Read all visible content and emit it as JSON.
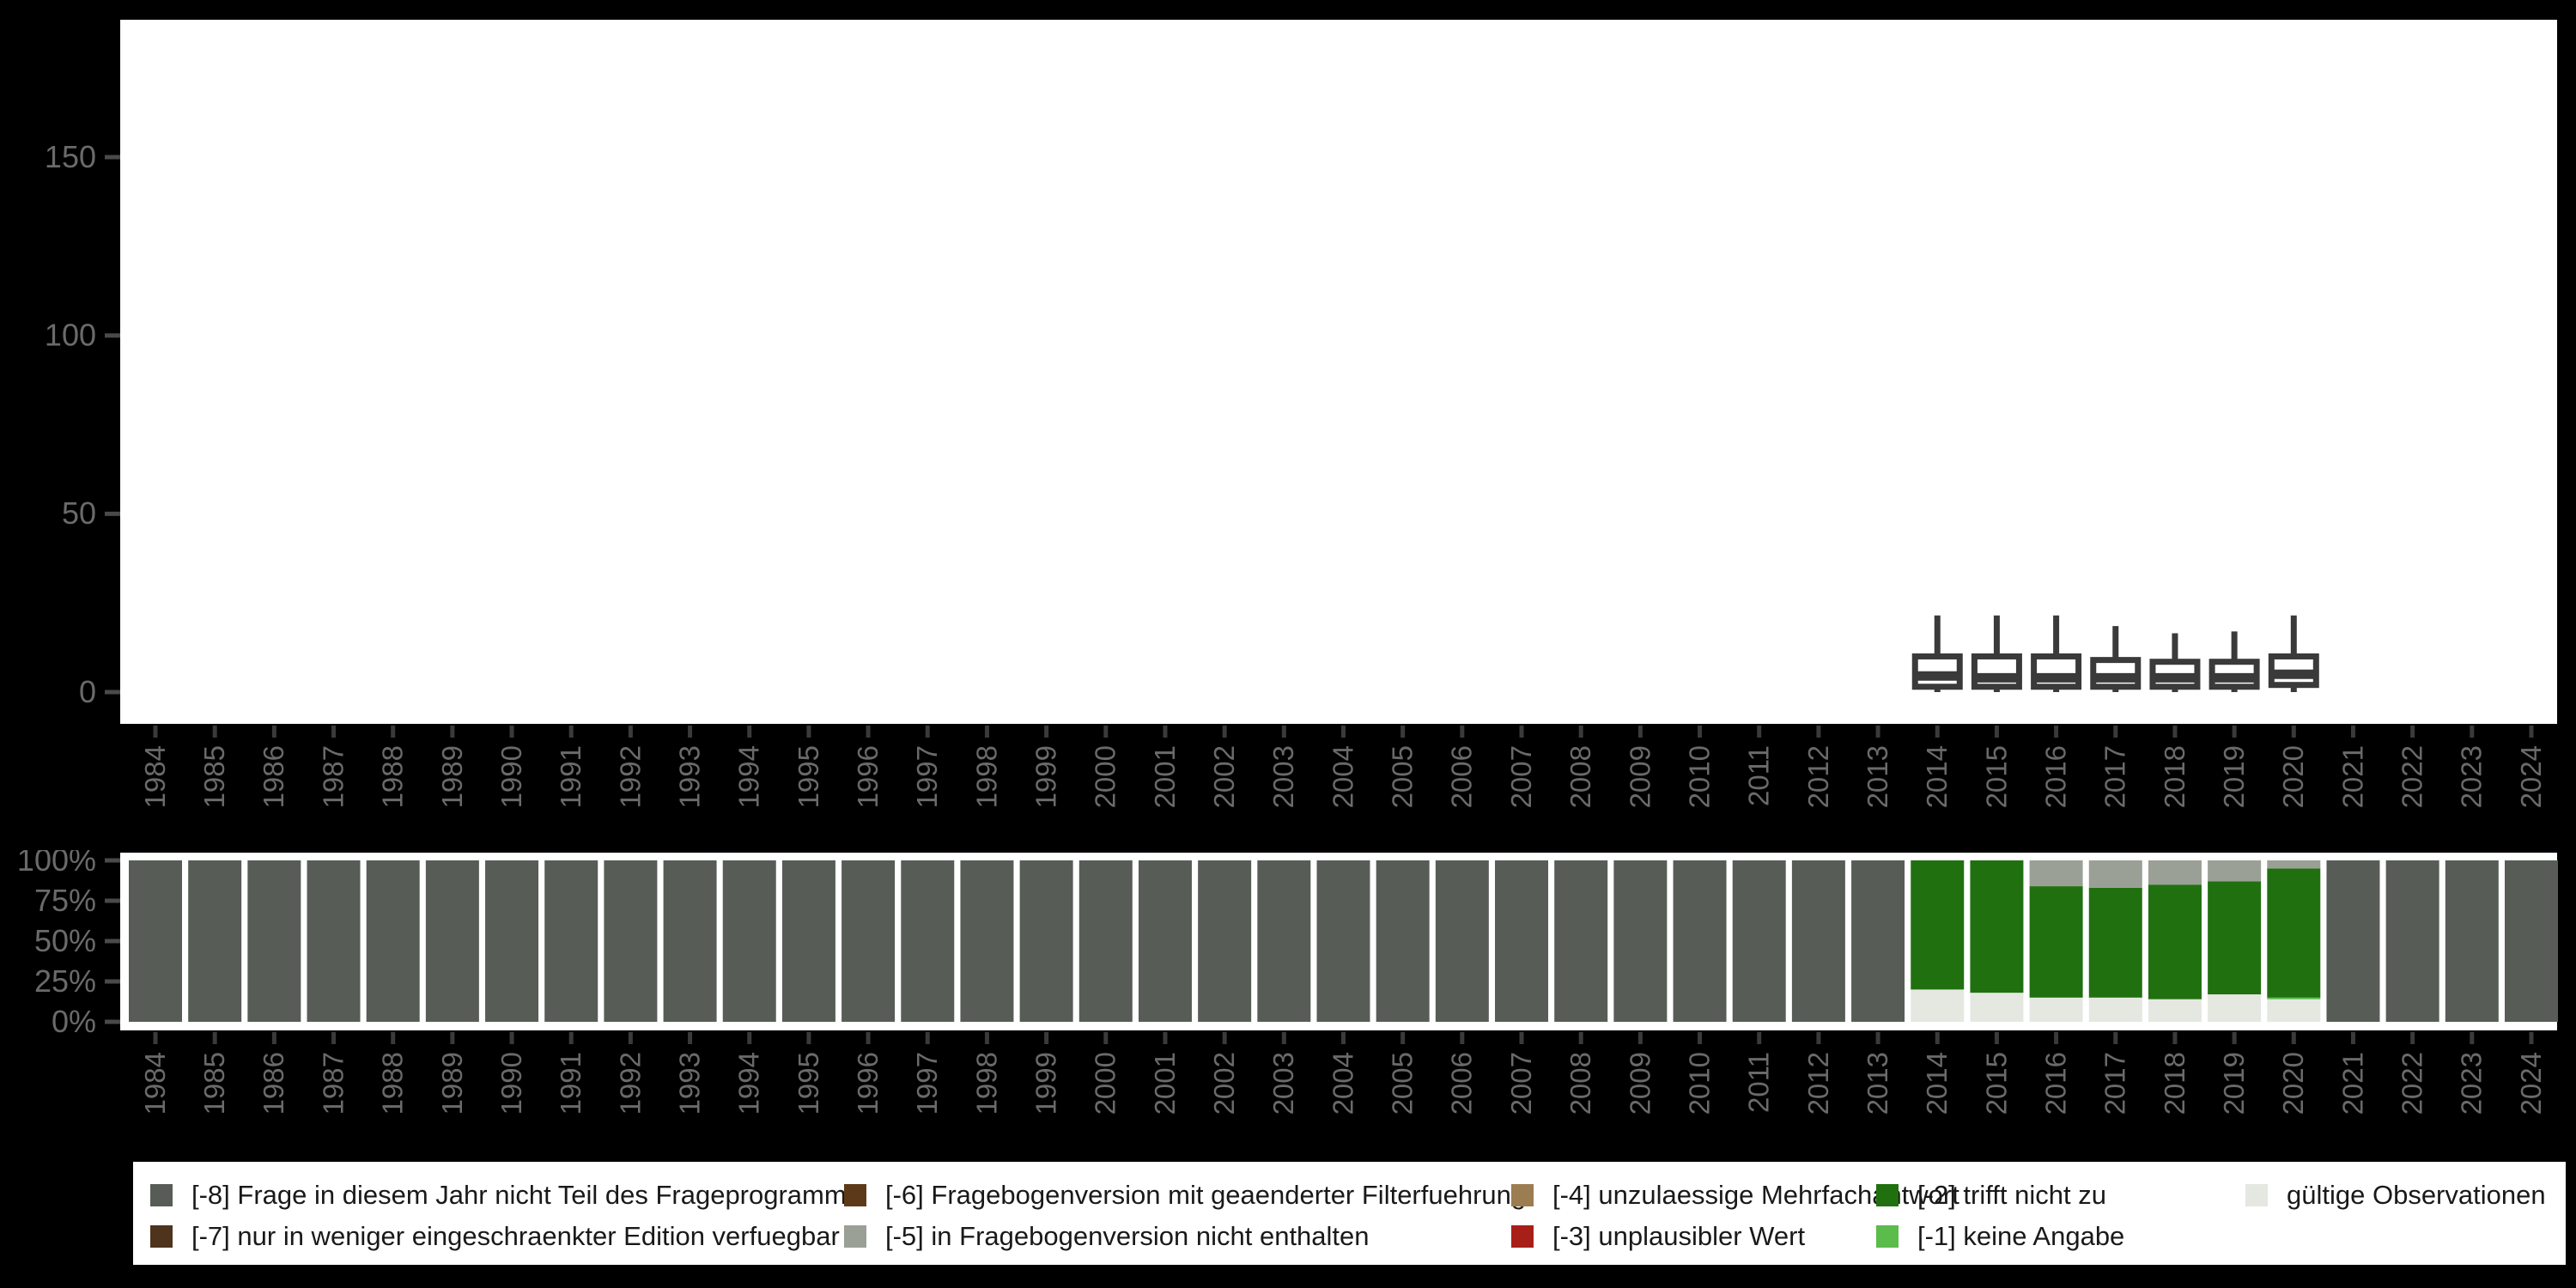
{
  "background": "#000000",
  "panel_bg": "#ffffff",
  "axis": {
    "text_color": "#6a6a6a",
    "tick_color": "#4a4a4a",
    "x_tick_color": "#3a3a3a"
  },
  "years": [
    1984,
    1985,
    1986,
    1987,
    1988,
    1989,
    1990,
    1991,
    1992,
    1993,
    1994,
    1995,
    1996,
    1997,
    1998,
    1999,
    2000,
    2001,
    2002,
    2003,
    2004,
    2005,
    2006,
    2007,
    2008,
    2009,
    2010,
    2011,
    2012,
    2013,
    2014,
    2015,
    2016,
    2017,
    2018,
    2019,
    2020,
    2021,
    2022,
    2023,
    2024
  ],
  "colors": {
    "-8": "#575d56",
    "-7": "#4e331d",
    "-6": "#5d3a17",
    "-5": "#9aa096",
    "-4": "#9c7c51",
    "-3": "#a81f19",
    "-2": "#217010",
    "-1": "#5bbb4b",
    "valid": "#e4e8e1"
  },
  "chart_data": [
    {
      "type": "boxplot",
      "title": "",
      "xlabel": "",
      "ylabel": "",
      "yticks": [
        0,
        50,
        100,
        150
      ],
      "ylim": [
        -9,
        190
      ],
      "grid": false,
      "box_stroke": "#3a3a3a",
      "box_fill": "#ffffff",
      "boxes": [
        {
          "year": 2014,
          "min": 0,
          "q1": 1.5,
          "median": 4.5,
          "q3": 10,
          "max": 21.5
        },
        {
          "year": 2015,
          "min": 0,
          "q1": 1.5,
          "median": 4,
          "q3": 10,
          "max": 21.5
        },
        {
          "year": 2016,
          "min": 0,
          "q1": 1.5,
          "median": 4,
          "q3": 10,
          "max": 21.5
        },
        {
          "year": 2017,
          "min": 0,
          "q1": 1.5,
          "median": 4,
          "q3": 9,
          "max": 18.5
        },
        {
          "year": 2018,
          "min": 0,
          "q1": 1.5,
          "median": 4,
          "q3": 8.5,
          "max": 16.5
        },
        {
          "year": 2019,
          "min": 0,
          "q1": 1.5,
          "median": 4,
          "q3": 8.5,
          "max": 17
        },
        {
          "year": 2020,
          "min": 0,
          "q1": 2,
          "median": 5,
          "q3": 10,
          "max": 21.5
        }
      ]
    },
    {
      "type": "bar",
      "stacked": true,
      "percent": true,
      "title": "",
      "xlabel": "",
      "ylabel": "",
      "ytick_labels": [
        "0%",
        "25%",
        "50%",
        "75%",
        "100%"
      ],
      "ytick_values": [
        0,
        25,
        50,
        75,
        100
      ],
      "grid": false,
      "bars": [
        {
          "year": 1984,
          "segments": [
            {
              "code": "-8",
              "pct": 100
            }
          ]
        },
        {
          "year": 1985,
          "segments": [
            {
              "code": "-8",
              "pct": 100
            }
          ]
        },
        {
          "year": 1986,
          "segments": [
            {
              "code": "-8",
              "pct": 100
            }
          ]
        },
        {
          "year": 1987,
          "segments": [
            {
              "code": "-8",
              "pct": 100
            }
          ]
        },
        {
          "year": 1988,
          "segments": [
            {
              "code": "-8",
              "pct": 100
            }
          ]
        },
        {
          "year": 1989,
          "segments": [
            {
              "code": "-8",
              "pct": 100
            }
          ]
        },
        {
          "year": 1990,
          "segments": [
            {
              "code": "-8",
              "pct": 100
            }
          ]
        },
        {
          "year": 1991,
          "segments": [
            {
              "code": "-8",
              "pct": 100
            }
          ]
        },
        {
          "year": 1992,
          "segments": [
            {
              "code": "-8",
              "pct": 100
            }
          ]
        },
        {
          "year": 1993,
          "segments": [
            {
              "code": "-8",
              "pct": 100
            }
          ]
        },
        {
          "year": 1994,
          "segments": [
            {
              "code": "-8",
              "pct": 100
            }
          ]
        },
        {
          "year": 1995,
          "segments": [
            {
              "code": "-8",
              "pct": 100
            }
          ]
        },
        {
          "year": 1996,
          "segments": [
            {
              "code": "-8",
              "pct": 100
            }
          ]
        },
        {
          "year": 1997,
          "segments": [
            {
              "code": "-8",
              "pct": 100
            }
          ]
        },
        {
          "year": 1998,
          "segments": [
            {
              "code": "-8",
              "pct": 100
            }
          ]
        },
        {
          "year": 1999,
          "segments": [
            {
              "code": "-8",
              "pct": 100
            }
          ]
        },
        {
          "year": 2000,
          "segments": [
            {
              "code": "-8",
              "pct": 100
            }
          ]
        },
        {
          "year": 2001,
          "segments": [
            {
              "code": "-8",
              "pct": 100
            }
          ]
        },
        {
          "year": 2002,
          "segments": [
            {
              "code": "-8",
              "pct": 100
            }
          ]
        },
        {
          "year": 2003,
          "segments": [
            {
              "code": "-8",
              "pct": 100
            }
          ]
        },
        {
          "year": 2004,
          "segments": [
            {
              "code": "-8",
              "pct": 100
            }
          ]
        },
        {
          "year": 2005,
          "segments": [
            {
              "code": "-8",
              "pct": 100
            }
          ]
        },
        {
          "year": 2006,
          "segments": [
            {
              "code": "-8",
              "pct": 100
            }
          ]
        },
        {
          "year": 2007,
          "segments": [
            {
              "code": "-8",
              "pct": 100
            }
          ]
        },
        {
          "year": 2008,
          "segments": [
            {
              "code": "-8",
              "pct": 100
            }
          ]
        },
        {
          "year": 2009,
          "segments": [
            {
              "code": "-8",
              "pct": 100
            }
          ]
        },
        {
          "year": 2010,
          "segments": [
            {
              "code": "-8",
              "pct": 100
            }
          ]
        },
        {
          "year": 2011,
          "segments": [
            {
              "code": "-8",
              "pct": 100
            }
          ]
        },
        {
          "year": 2012,
          "segments": [
            {
              "code": "-8",
              "pct": 100
            }
          ]
        },
        {
          "year": 2013,
          "segments": [
            {
              "code": "-8",
              "pct": 100
            }
          ]
        },
        {
          "year": 2014,
          "segments": [
            {
              "code": "valid",
              "pct": 20
            },
            {
              "code": "-2",
              "pct": 80
            }
          ]
        },
        {
          "year": 2015,
          "segments": [
            {
              "code": "valid",
              "pct": 18
            },
            {
              "code": "-2",
              "pct": 82
            }
          ]
        },
        {
          "year": 2016,
          "segments": [
            {
              "code": "valid",
              "pct": 15
            },
            {
              "code": "-2",
              "pct": 69
            },
            {
              "code": "-5",
              "pct": 16
            }
          ]
        },
        {
          "year": 2017,
          "segments": [
            {
              "code": "valid",
              "pct": 15
            },
            {
              "code": "-2",
              "pct": 68
            },
            {
              "code": "-5",
              "pct": 17
            }
          ]
        },
        {
          "year": 2018,
          "segments": [
            {
              "code": "valid",
              "pct": 14
            },
            {
              "code": "-2",
              "pct": 71
            },
            {
              "code": "-5",
              "pct": 15
            }
          ]
        },
        {
          "year": 2019,
          "segments": [
            {
              "code": "valid",
              "pct": 17
            },
            {
              "code": "-2",
              "pct": 70
            },
            {
              "code": "-5",
              "pct": 13
            }
          ]
        },
        {
          "year": 2020,
          "segments": [
            {
              "code": "valid",
              "pct": 14
            },
            {
              "code": "-1",
              "pct": 1
            },
            {
              "code": "-2",
              "pct": 80
            },
            {
              "code": "-5",
              "pct": 5
            }
          ]
        },
        {
          "year": 2021,
          "segments": [
            {
              "code": "-8",
              "pct": 100
            }
          ]
        },
        {
          "year": 2022,
          "segments": [
            {
              "code": "-8",
              "pct": 100
            }
          ]
        },
        {
          "year": 2023,
          "segments": [
            {
              "code": "-8",
              "pct": 100
            }
          ]
        },
        {
          "year": 2024,
          "segments": [
            {
              "code": "-8",
              "pct": 100
            }
          ]
        }
      ]
    }
  ],
  "legend": {
    "items": [
      {
        "code": "-8",
        "label": "[-8] Frage in diesem Jahr nicht Teil des Frageprogramms"
      },
      {
        "code": "-7",
        "label": "[-7] nur in weniger eingeschraenkter Edition verfuegbar"
      },
      {
        "code": "-6",
        "label": "[-6] Fragebogenversion mit geaenderter Filterfuehrung"
      },
      {
        "code": "-5",
        "label": "[-5] in Fragebogenversion nicht enthalten"
      },
      {
        "code": "-4",
        "label": "[-4] unzulaessige Mehrfachantwort"
      },
      {
        "code": "-3",
        "label": "[-3] unplausibler Wert"
      },
      {
        "code": "-2",
        "label": "[-2] trifft nicht zu"
      },
      {
        "code": "-1",
        "label": "[-1] keine Angabe"
      },
      {
        "code": "valid",
        "label": "gültige Observationen"
      }
    ]
  }
}
